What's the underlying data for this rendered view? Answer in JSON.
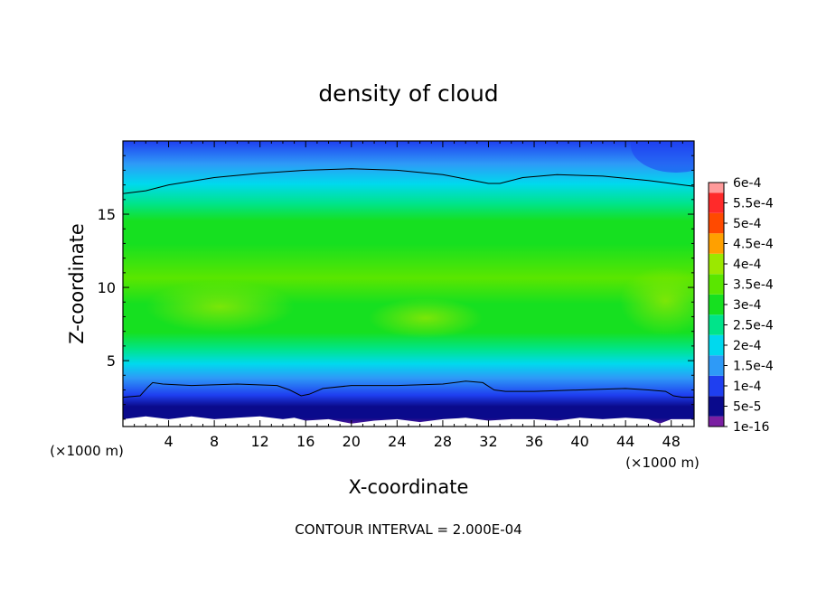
{
  "chart_data": {
    "type": "heatmap",
    "title": "density of cloud",
    "xlabel": "X-coordinate",
    "ylabel": "Z-coordinate",
    "x_unit": "(×1000 m)",
    "y_unit": "(×1000 m)",
    "footer": "CONTOUR INTERVAL = 2.000E-04",
    "xlim": [
      0,
      50
    ],
    "ylim": [
      0.5,
      20
    ],
    "x_ticks": [
      4,
      8,
      12,
      16,
      20,
      24,
      28,
      32,
      36,
      40,
      44,
      48
    ],
    "y_ticks": [
      5,
      10,
      15
    ],
    "legend": {
      "position": "right",
      "labels": [
        "1e-16",
        "5e-5",
        "1e-4",
        "1.5e-4",
        "2e-4",
        "2.5e-4",
        "3e-4",
        "3.5e-4",
        "4e-4",
        "4.5e-4",
        "5e-4",
        "5.5e-4",
        "6e-4"
      ],
      "colors": [
        "#7a1fa2",
        "#0a0a8c",
        "#1f3ff0",
        "#2e9af7",
        "#00d9ee",
        "#00e48a",
        "#16e020",
        "#5ae600",
        "#9be800",
        "#ffa000",
        "#ff4a00",
        "#ff2a2a",
        "#ff9a9a"
      ]
    },
    "contour_lines": [
      {
        "level": "2e-4",
        "x": [
          0,
          2,
          4,
          8,
          12,
          16,
          20,
          24,
          28,
          30,
          32,
          33,
          35,
          38,
          42,
          46,
          48,
          50
        ],
        "z": [
          16.4,
          16.6,
          17.0,
          17.5,
          17.8,
          18.0,
          18.1,
          18.0,
          17.7,
          17.4,
          17.1,
          17.1,
          17.5,
          17.7,
          17.6,
          17.3,
          17.1,
          16.9
        ]
      },
      {
        "level": "1e-4",
        "x": [
          0,
          1.5,
          2.2,
          2.6,
          3.5,
          6,
          10,
          13.5,
          14.6,
          15.6,
          16.3,
          17.5,
          20,
          24,
          28,
          30,
          31.5,
          32.5,
          33.5,
          36,
          40,
          44,
          46,
          47.5,
          48.2,
          49,
          50
        ],
        "z": [
          2.5,
          2.6,
          3.2,
          3.5,
          3.4,
          3.3,
          3.4,
          3.3,
          3.0,
          2.6,
          2.7,
          3.1,
          3.3,
          3.3,
          3.4,
          3.6,
          3.5,
          3.0,
          2.9,
          2.9,
          3.0,
          3.1,
          3.0,
          2.9,
          2.6,
          2.5,
          2.5
        ]
      }
    ],
    "bottom_clear_layer": {
      "x": [
        0,
        2,
        4,
        6,
        8,
        10,
        12,
        14,
        15,
        16,
        18,
        20,
        22,
        24,
        26,
        28,
        30,
        32,
        34,
        36,
        38,
        40,
        42,
        44,
        46,
        47,
        48,
        50
      ],
      "z": [
        1.0,
        1.2,
        1.0,
        1.2,
        1.0,
        1.1,
        1.2,
        1.0,
        1.1,
        0.9,
        1.0,
        0.7,
        0.9,
        1.0,
        0.8,
        1.0,
        1.1,
        0.9,
        1.0,
        1.0,
        0.9,
        1.1,
        1.0,
        1.1,
        1.0,
        0.7,
        1.0,
        1.0
      ]
    }
  }
}
